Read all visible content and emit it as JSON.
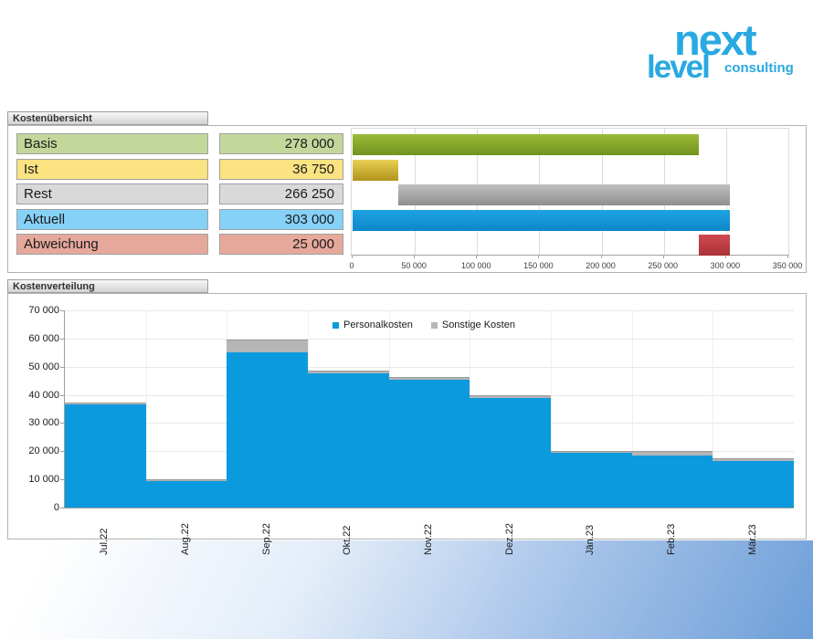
{
  "logo": {
    "line1": "next",
    "line2": "level",
    "line3": "consulting",
    "color": "#29a9e1"
  },
  "panel1": {
    "title": "Kostenübersicht"
  },
  "panel2": {
    "title": "Kostenverteilung"
  },
  "chart_data": [
    {
      "type": "bar",
      "orientation": "horizontal",
      "title": "Kostenübersicht",
      "categories": [
        "Basis",
        "Ist",
        "Rest",
        "Aktuell",
        "Abweichung"
      ],
      "values": [
        278000,
        36750,
        266250,
        303000,
        25000
      ],
      "value_labels": [
        "278 000",
        "36 750",
        "266 250",
        "303 000",
        "25 000"
      ],
      "bar_ranges": [
        [
          0,
          278000
        ],
        [
          0,
          36750
        ],
        [
          36750,
          303000
        ],
        [
          0,
          303000
        ],
        [
          278000,
          303000
        ]
      ],
      "row_colors": [
        "#c4d79b",
        "#fbe382",
        "#d9d9d9",
        "#86d1f8",
        "#e6a89b"
      ],
      "bar_gradients": [
        [
          "#9aba38",
          "#71931f"
        ],
        [
          "#e9d055",
          "#b2931c"
        ],
        [
          "#c0c0c0",
          "#8f8f8f"
        ],
        [
          "#1ea2e2",
          "#0d87c8"
        ],
        [
          "#cf4a51",
          "#ab3138"
        ]
      ],
      "xlim": [
        0,
        350000
      ],
      "x_tick_values": [
        0,
        50000,
        100000,
        150000,
        200000,
        250000,
        300000,
        350000
      ],
      "x_tick_labels": [
        "0",
        "50 000",
        "100 000",
        "150 000",
        "200 000",
        "250 000",
        "300 000",
        "350 000"
      ],
      "grid": "vertical"
    },
    {
      "type": "area",
      "title": "Kostenverteilung",
      "stacked": true,
      "step": true,
      "categories": [
        "Jul.22",
        "Aug.22",
        "Sep.22",
        "Okt.22",
        "Nov.22",
        "Dez.22",
        "Jän.23",
        "Feb.23",
        "Mär.23"
      ],
      "series": [
        {
          "name": "Personalkosten",
          "color": "#0c9ade",
          "values": [
            36500,
            9500,
            55000,
            47500,
            45500,
            39000,
            19500,
            18500,
            16500
          ]
        },
        {
          "name": "Sonstige Kosten",
          "color": "#b5b5b5",
          "values": [
            500,
            500,
            4500,
            1000,
            1000,
            1000,
            500,
            1500,
            1000
          ]
        }
      ],
      "totals": [
        37000,
        10000,
        59500,
        48500,
        46500,
        40000,
        20000,
        20000,
        17500
      ],
      "ylim": [
        0,
        70000
      ],
      "y_tick_values": [
        0,
        10000,
        20000,
        30000,
        40000,
        50000,
        60000,
        70000
      ],
      "y_tick_labels": [
        "0",
        "10 000",
        "20 000",
        "30 000",
        "40 000",
        "50 000",
        "60 000",
        "70 000"
      ],
      "legend_position": "top",
      "grid": "both"
    }
  ]
}
